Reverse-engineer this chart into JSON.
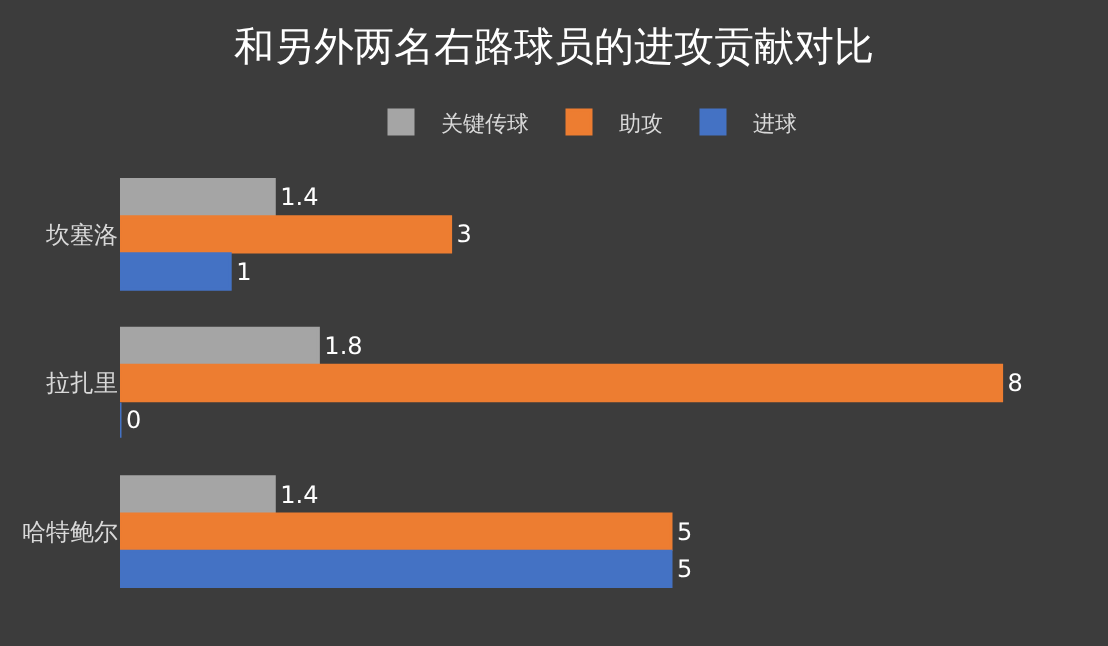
{
  "chart_data": {
    "type": "bar",
    "orientation": "horizontal",
    "title": "和另外两名右路球员的进攻贡献对比",
    "categories": [
      "坎塞洛",
      "拉扎里",
      "哈特鲍尔"
    ],
    "series": [
      {
        "name": "关键传球",
        "color": "#a5a5a5",
        "values": [
          1.4,
          1.8,
          1.4
        ]
      },
      {
        "name": "助攻",
        "color": "#ed7d31",
        "values": [
          3,
          8,
          5
        ]
      },
      {
        "name": "进球",
        "color": "#4472c4",
        "values": [
          1,
          0,
          5
        ]
      }
    ],
    "data_labels": true,
    "legend": "top",
    "grid": false
  }
}
